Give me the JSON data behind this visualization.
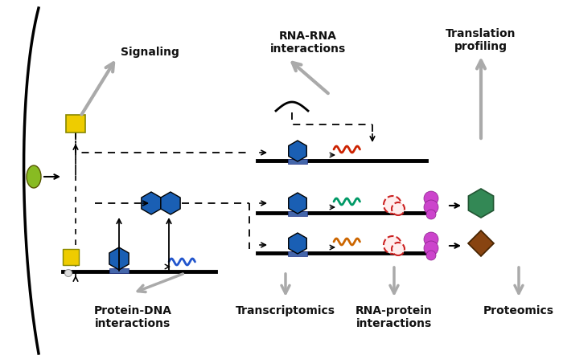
{
  "bg_color": "#ffffff",
  "labels": {
    "signaling": "Signaling",
    "rna_rna": "RNA-RNA\ninteractions",
    "translation": "Translation\nprofiling",
    "protein_dna": "Protein-DNA\ninteractions",
    "transcriptomics": "Transcriptomics",
    "rna_protein": "RNA-protein\ninteractions",
    "proteomics": "Proteomics"
  },
  "colors": {
    "gray_arrow": "#aaaaaa",
    "blue_hexagon": "#1a5fb4",
    "blue_rect": "#4466aa",
    "yellow_rect": "#eecc00",
    "green_ellipse": "#88bb22",
    "teal_hexagon": "#338855",
    "brown_diamond": "#884411",
    "magenta_ribosome": "#cc44cc",
    "orange_rna": "#cc6600",
    "green_rna": "#009966",
    "blue_rna": "#2255cc",
    "red_rna": "#cc2200",
    "text_color": "#111111"
  }
}
